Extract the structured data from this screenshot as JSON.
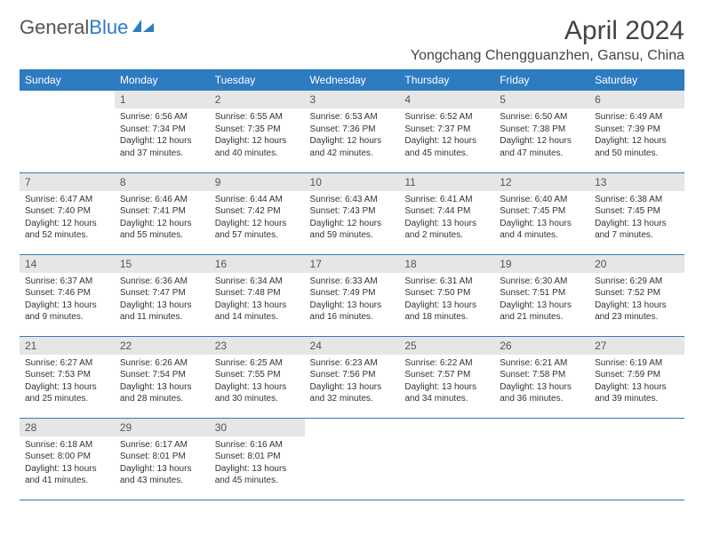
{
  "brand": {
    "part1": "General",
    "part2": "Blue"
  },
  "title": "April 2024",
  "location": "Yongchang Chengguanzhen, Gansu, China",
  "colors": {
    "header_bg": "#2e7cc0",
    "header_text": "#ffffff",
    "daynum_bg": "#e6e6e6",
    "border": "#2e7cc0",
    "text": "#333333",
    "background": "#ffffff"
  },
  "weekdays": [
    "Sunday",
    "Monday",
    "Tuesday",
    "Wednesday",
    "Thursday",
    "Friday",
    "Saturday"
  ],
  "weeks": [
    [
      {
        "n": "",
        "sr": "",
        "ss": "",
        "dl": ""
      },
      {
        "n": "1",
        "sr": "Sunrise: 6:56 AM",
        "ss": "Sunset: 7:34 PM",
        "dl": "Daylight: 12 hours and 37 minutes."
      },
      {
        "n": "2",
        "sr": "Sunrise: 6:55 AM",
        "ss": "Sunset: 7:35 PM",
        "dl": "Daylight: 12 hours and 40 minutes."
      },
      {
        "n": "3",
        "sr": "Sunrise: 6:53 AM",
        "ss": "Sunset: 7:36 PM",
        "dl": "Daylight: 12 hours and 42 minutes."
      },
      {
        "n": "4",
        "sr": "Sunrise: 6:52 AM",
        "ss": "Sunset: 7:37 PM",
        "dl": "Daylight: 12 hours and 45 minutes."
      },
      {
        "n": "5",
        "sr": "Sunrise: 6:50 AM",
        "ss": "Sunset: 7:38 PM",
        "dl": "Daylight: 12 hours and 47 minutes."
      },
      {
        "n": "6",
        "sr": "Sunrise: 6:49 AM",
        "ss": "Sunset: 7:39 PM",
        "dl": "Daylight: 12 hours and 50 minutes."
      }
    ],
    [
      {
        "n": "7",
        "sr": "Sunrise: 6:47 AM",
        "ss": "Sunset: 7:40 PM",
        "dl": "Daylight: 12 hours and 52 minutes."
      },
      {
        "n": "8",
        "sr": "Sunrise: 6:46 AM",
        "ss": "Sunset: 7:41 PM",
        "dl": "Daylight: 12 hours and 55 minutes."
      },
      {
        "n": "9",
        "sr": "Sunrise: 6:44 AM",
        "ss": "Sunset: 7:42 PM",
        "dl": "Daylight: 12 hours and 57 minutes."
      },
      {
        "n": "10",
        "sr": "Sunrise: 6:43 AM",
        "ss": "Sunset: 7:43 PM",
        "dl": "Daylight: 12 hours and 59 minutes."
      },
      {
        "n": "11",
        "sr": "Sunrise: 6:41 AM",
        "ss": "Sunset: 7:44 PM",
        "dl": "Daylight: 13 hours and 2 minutes."
      },
      {
        "n": "12",
        "sr": "Sunrise: 6:40 AM",
        "ss": "Sunset: 7:45 PM",
        "dl": "Daylight: 13 hours and 4 minutes."
      },
      {
        "n": "13",
        "sr": "Sunrise: 6:38 AM",
        "ss": "Sunset: 7:45 PM",
        "dl": "Daylight: 13 hours and 7 minutes."
      }
    ],
    [
      {
        "n": "14",
        "sr": "Sunrise: 6:37 AM",
        "ss": "Sunset: 7:46 PM",
        "dl": "Daylight: 13 hours and 9 minutes."
      },
      {
        "n": "15",
        "sr": "Sunrise: 6:36 AM",
        "ss": "Sunset: 7:47 PM",
        "dl": "Daylight: 13 hours and 11 minutes."
      },
      {
        "n": "16",
        "sr": "Sunrise: 6:34 AM",
        "ss": "Sunset: 7:48 PM",
        "dl": "Daylight: 13 hours and 14 minutes."
      },
      {
        "n": "17",
        "sr": "Sunrise: 6:33 AM",
        "ss": "Sunset: 7:49 PM",
        "dl": "Daylight: 13 hours and 16 minutes."
      },
      {
        "n": "18",
        "sr": "Sunrise: 6:31 AM",
        "ss": "Sunset: 7:50 PM",
        "dl": "Daylight: 13 hours and 18 minutes."
      },
      {
        "n": "19",
        "sr": "Sunrise: 6:30 AM",
        "ss": "Sunset: 7:51 PM",
        "dl": "Daylight: 13 hours and 21 minutes."
      },
      {
        "n": "20",
        "sr": "Sunrise: 6:29 AM",
        "ss": "Sunset: 7:52 PM",
        "dl": "Daylight: 13 hours and 23 minutes."
      }
    ],
    [
      {
        "n": "21",
        "sr": "Sunrise: 6:27 AM",
        "ss": "Sunset: 7:53 PM",
        "dl": "Daylight: 13 hours and 25 minutes."
      },
      {
        "n": "22",
        "sr": "Sunrise: 6:26 AM",
        "ss": "Sunset: 7:54 PM",
        "dl": "Daylight: 13 hours and 28 minutes."
      },
      {
        "n": "23",
        "sr": "Sunrise: 6:25 AM",
        "ss": "Sunset: 7:55 PM",
        "dl": "Daylight: 13 hours and 30 minutes."
      },
      {
        "n": "24",
        "sr": "Sunrise: 6:23 AM",
        "ss": "Sunset: 7:56 PM",
        "dl": "Daylight: 13 hours and 32 minutes."
      },
      {
        "n": "25",
        "sr": "Sunrise: 6:22 AM",
        "ss": "Sunset: 7:57 PM",
        "dl": "Daylight: 13 hours and 34 minutes."
      },
      {
        "n": "26",
        "sr": "Sunrise: 6:21 AM",
        "ss": "Sunset: 7:58 PM",
        "dl": "Daylight: 13 hours and 36 minutes."
      },
      {
        "n": "27",
        "sr": "Sunrise: 6:19 AM",
        "ss": "Sunset: 7:59 PM",
        "dl": "Daylight: 13 hours and 39 minutes."
      }
    ],
    [
      {
        "n": "28",
        "sr": "Sunrise: 6:18 AM",
        "ss": "Sunset: 8:00 PM",
        "dl": "Daylight: 13 hours and 41 minutes."
      },
      {
        "n": "29",
        "sr": "Sunrise: 6:17 AM",
        "ss": "Sunset: 8:01 PM",
        "dl": "Daylight: 13 hours and 43 minutes."
      },
      {
        "n": "30",
        "sr": "Sunrise: 6:16 AM",
        "ss": "Sunset: 8:01 PM",
        "dl": "Daylight: 13 hours and 45 minutes."
      },
      {
        "n": "",
        "sr": "",
        "ss": "",
        "dl": ""
      },
      {
        "n": "",
        "sr": "",
        "ss": "",
        "dl": ""
      },
      {
        "n": "",
        "sr": "",
        "ss": "",
        "dl": ""
      },
      {
        "n": "",
        "sr": "",
        "ss": "",
        "dl": ""
      }
    ]
  ]
}
